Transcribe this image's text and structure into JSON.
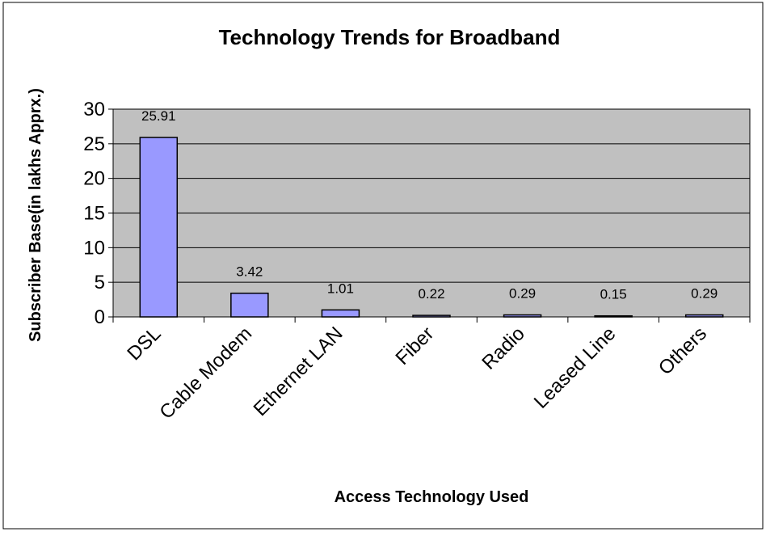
{
  "chart_data": {
    "type": "bar",
    "title": "Technology Trends for Broadband",
    "xlabel": "Access Technology Used",
    "ylabel": "Subscriber Base(in lakhs Apprx.)",
    "categories": [
      "DSL",
      "Cable Modem",
      "Ethernet LAN",
      "Fiber",
      "Radio",
      "Leased Line",
      "Others"
    ],
    "values": [
      25.91,
      3.42,
      1.01,
      0.22,
      0.29,
      0.15,
      0.29
    ],
    "data_labels": [
      "25.91",
      "3.42",
      "1.01",
      "0.22",
      "0.29",
      "0.15",
      "0.29"
    ],
    "ylim": [
      0,
      30
    ],
    "yticks": [
      0,
      5,
      10,
      15,
      20,
      25,
      30
    ],
    "grid": true,
    "legend": "none",
    "colors": {
      "bar_fill": "#9999ff",
      "bar_stroke": "#000000",
      "plot_background": "#c0c0c0",
      "gridline": "#000000",
      "page_background": "#ffffff"
    }
  }
}
